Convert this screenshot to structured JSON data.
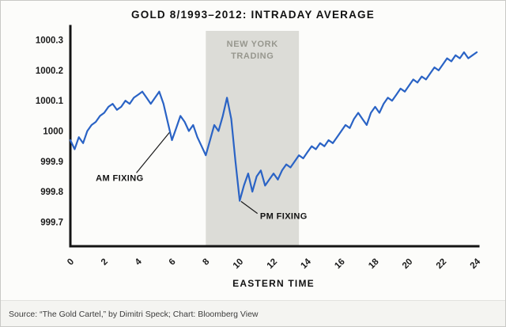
{
  "chart_data": {
    "type": "line",
    "title": "GOLD 8/1993–2012: INTRADAY AVERAGE",
    "xlabel": "EASTERN TIME",
    "ylabel": "",
    "xlim": [
      0,
      24
    ],
    "ylim": [
      999.62,
      1000.32
    ],
    "grid": false,
    "legend": "none",
    "line_color": "#2a63c5",
    "axis_color": "#141414",
    "x_ticks": [
      0,
      2,
      4,
      6,
      8,
      10,
      12,
      14,
      16,
      18,
      20,
      22,
      24
    ],
    "y_ticks": [
      {
        "value": 999.7,
        "label": "999.7"
      },
      {
        "value": 999.8,
        "label": "999.8"
      },
      {
        "value": 999.9,
        "label": "999.9"
      },
      {
        "value": 1000,
        "label": "1000"
      },
      {
        "value": 1000.1,
        "label": "1000.1"
      },
      {
        "value": 1000.2,
        "label": "1000.2"
      },
      {
        "value": 1000.3,
        "label": "1000.3"
      }
    ],
    "band": {
      "x0": 8,
      "x1": 13.5,
      "color": "#dcdcd7",
      "label_color": "#97978e",
      "label_lines": [
        "NEW YORK",
        "TRADING"
      ]
    },
    "annotations": [
      {
        "name": "am-fixing",
        "label": "AM FIXING",
        "text_x": 1.5,
        "text_y": 999.835,
        "line_from": [
          3.9,
          999.862
        ],
        "line_to": [
          5.85,
          999.995
        ]
      },
      {
        "name": "pm-fixing",
        "label": "PM FIXING",
        "text_x": 11.2,
        "text_y": 999.71,
        "line_from": [
          11.05,
          999.728
        ],
        "line_to": [
          10.08,
          999.768
        ]
      }
    ],
    "series": [
      {
        "name": "Intraday average gold price (indexed)",
        "x": [
          0,
          0.25,
          0.5,
          0.75,
          1,
          1.25,
          1.5,
          1.75,
          2,
          2.25,
          2.5,
          2.75,
          3,
          3.25,
          3.5,
          3.75,
          4,
          4.25,
          4.5,
          4.75,
          5,
          5.25,
          5.5,
          5.75,
          6,
          6.25,
          6.5,
          6.75,
          7,
          7.25,
          7.5,
          7.75,
          8,
          8.25,
          8.5,
          8.75,
          9,
          9.25,
          9.5,
          9.75,
          10,
          10.25,
          10.5,
          10.75,
          11,
          11.25,
          11.5,
          11.75,
          12,
          12.25,
          12.5,
          12.75,
          13,
          13.25,
          13.5,
          13.75,
          14,
          14.25,
          14.5,
          14.75,
          15,
          15.25,
          15.5,
          15.75,
          16,
          16.25,
          16.5,
          16.75,
          17,
          17.25,
          17.5,
          17.75,
          18,
          18.25,
          18.5,
          18.75,
          19,
          19.25,
          19.5,
          19.75,
          20,
          20.25,
          20.5,
          20.75,
          21,
          21.25,
          21.5,
          21.75,
          22,
          22.25,
          22.5,
          22.75,
          23,
          23.25,
          23.5,
          23.75,
          24
        ],
        "y": [
          999.97,
          999.94,
          999.98,
          999.96,
          1000.0,
          1000.02,
          1000.03,
          1000.05,
          1000.06,
          1000.08,
          1000.09,
          1000.07,
          1000.08,
          1000.1,
          1000.09,
          1000.11,
          1000.12,
          1000.13,
          1000.11,
          1000.09,
          1000.11,
          1000.13,
          1000.09,
          1000.03,
          999.97,
          1000.01,
          1000.05,
          1000.03,
          1000.0,
          1000.02,
          999.98,
          999.95,
          999.92,
          999.97,
          1000.02,
          1000.0,
          1000.05,
          1000.11,
          1000.04,
          999.9,
          999.77,
          999.82,
          999.86,
          999.8,
          999.85,
          999.87,
          999.82,
          999.84,
          999.86,
          999.84,
          999.87,
          999.89,
          999.88,
          999.9,
          999.92,
          999.91,
          999.93,
          999.95,
          999.94,
          999.96,
          999.95,
          999.97,
          999.96,
          999.98,
          1000.0,
          1000.02,
          1000.01,
          1000.04,
          1000.06,
          1000.04,
          1000.02,
          1000.06,
          1000.08,
          1000.06,
          1000.09,
          1000.11,
          1000.1,
          1000.12,
          1000.14,
          1000.13,
          1000.15,
          1000.17,
          1000.16,
          1000.18,
          1000.17,
          1000.19,
          1000.21,
          1000.2,
          1000.22,
          1000.24,
          1000.23,
          1000.25,
          1000.24,
          1000.26,
          1000.24,
          1000.25,
          1000.26
        ]
      }
    ]
  },
  "footer": {
    "source": "Source: “The Gold Cartel,” by Dimitri Speck; Chart: Bloomberg View"
  }
}
